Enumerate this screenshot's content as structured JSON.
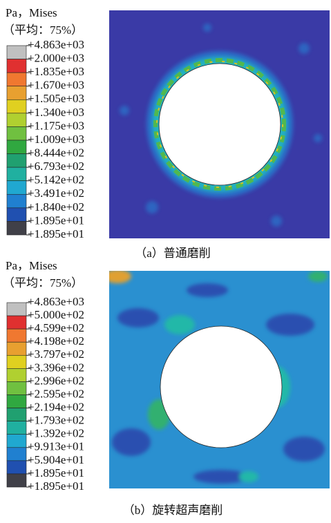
{
  "panels": [
    {
      "header": "Pa，Mises",
      "subheader": "（平均：75%）",
      "legend": [
        "+4.863e+03",
        "+2.000e+03",
        "+1.835e+03",
        "+1.670e+03",
        "+1.505e+03",
        "+1.340e+03",
        "+1.175e+03",
        "+1.009e+03",
        "+8.444e+02",
        "+6.793e+02",
        "+5.142e+02",
        "+3.491e+02",
        "+1.840e+02",
        "+1.895e+01",
        "+1.895e+01"
      ],
      "caption": "（a）普通磨削"
    },
    {
      "header": "Pa，Mises",
      "subheader": "（平均：75%）",
      "legend": [
        "+4.863e+03",
        "+5.000e+02",
        "+4.599e+02",
        "+4.198e+02",
        "+3.797e+02",
        "+3.396e+02",
        "+2.996e+02",
        "+2.595e+02",
        "+2.194e+02",
        "+1.793e+02",
        "+1.392e+02",
        "+9.913e+01",
        "+5.904e+01",
        "+1.895e+01",
        "+1.895e+01"
      ],
      "caption": "（b）旋转超声磨削"
    }
  ]
}
